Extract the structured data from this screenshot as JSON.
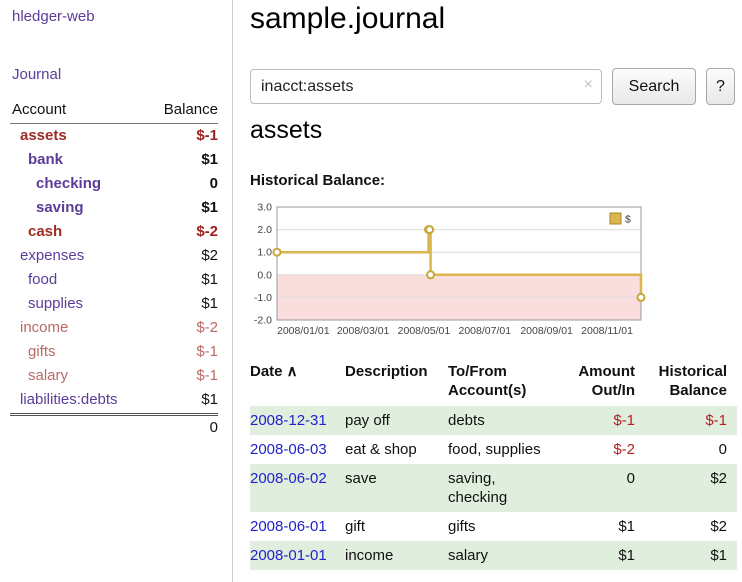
{
  "app": {
    "title": "hledger-web",
    "nav_journal": "Journal"
  },
  "sidebar": {
    "accounts_header": {
      "account": "Account",
      "balance": "Balance"
    },
    "accounts": [
      {
        "name": "assets",
        "balance": "$-1",
        "depth": 1,
        "bold": true,
        "negative": true
      },
      {
        "name": "bank",
        "balance": "$1",
        "depth": 2,
        "bold": true,
        "negative": false
      },
      {
        "name": "checking",
        "balance": "0",
        "depth": 3,
        "bold": true,
        "negative": false
      },
      {
        "name": "saving",
        "balance": "$1",
        "depth": 3,
        "bold": true,
        "negative": false
      },
      {
        "name": "cash",
        "balance": "$-2",
        "depth": 2,
        "bold": true,
        "negative": true
      },
      {
        "name": "expenses",
        "balance": "$2",
        "depth": 1,
        "bold": false,
        "negative": false
      },
      {
        "name": "food",
        "balance": "$1",
        "depth": 2,
        "bold": false,
        "negative": false
      },
      {
        "name": "supplies",
        "balance": "$1",
        "depth": 2,
        "bold": false,
        "negative": false
      },
      {
        "name": "income",
        "balance": "$-2",
        "depth": 1,
        "bold": false,
        "negative": true
      },
      {
        "name": "gifts",
        "balance": "$-1",
        "depth": 2,
        "bold": false,
        "negative": true
      },
      {
        "name": "salary",
        "balance": "$-1",
        "depth": 2,
        "bold": false,
        "negative": true
      },
      {
        "name": "liabilities:debts",
        "balance": "$1",
        "depth": 1,
        "bold": false,
        "negative": false
      }
    ],
    "total": "0"
  },
  "header": {
    "title": "sample.journal"
  },
  "search": {
    "value": "inacct:assets",
    "clear_icon": "×",
    "button": "Search",
    "help_button": "?"
  },
  "main": {
    "account_title": "assets",
    "chart_label": "Historical Balance:",
    "register": {
      "headers": [
        {
          "key": "date",
          "lines": [
            "Date"
          ],
          "sort_icon": "∧",
          "sortable": true
        },
        {
          "key": "description",
          "lines": [
            "Description"
          ],
          "sortable": true
        },
        {
          "key": "accounts",
          "lines": [
            "To/From",
            "Account(s)"
          ],
          "sortable": true
        },
        {
          "key": "amount",
          "lines": [
            "Amount",
            "Out/In"
          ],
          "align": "right",
          "sortable": true
        },
        {
          "key": "balance",
          "lines": [
            "Historical",
            "Balance"
          ],
          "align": "right",
          "sortable": true
        }
      ],
      "rows": [
        {
          "date": "2008-12-31",
          "description": "pay off",
          "accounts": "debts",
          "amount": "$-1",
          "amount_negative": true,
          "balance": "$-1",
          "balance_negative": true
        },
        {
          "date": "2008-06-03",
          "description": "eat & shop",
          "accounts": "food, supplies",
          "amount": "$-2",
          "amount_negative": true,
          "balance": "0",
          "balance_negative": false
        },
        {
          "date": "2008-06-02",
          "description": "save",
          "accounts": "saving, checking",
          "amount": "0",
          "amount_negative": false,
          "balance": "$2",
          "balance_negative": false
        },
        {
          "date": "2008-06-01",
          "description": "gift",
          "accounts": "gifts",
          "amount": "$1",
          "amount_negative": false,
          "balance": "$2",
          "balance_negative": false
        },
        {
          "date": "2008-01-01",
          "description": "income",
          "accounts": "salary",
          "amount": "$1",
          "amount_negative": false,
          "balance": "$1",
          "balance_negative": false
        }
      ]
    }
  },
  "chart_data": {
    "type": "line",
    "title": "Historical Balance",
    "step": true,
    "legend": "$",
    "y_ticks": [
      3,
      2,
      1,
      0,
      -1,
      -2
    ],
    "y_range": [
      -2,
      3
    ],
    "x_range": [
      0,
      365
    ],
    "x_ticks": [
      {
        "label": "2008/01/01",
        "day": 0
      },
      {
        "label": "2008/03/01",
        "day": 60
      },
      {
        "label": "2008/05/01",
        "day": 121
      },
      {
        "label": "2008/07/01",
        "day": 182
      },
      {
        "label": "2008/09/01",
        "day": 244
      },
      {
        "label": "2008/11/01",
        "day": 305
      }
    ],
    "series": [
      {
        "name": "$",
        "points": [
          {
            "date": "2008-01-01",
            "day": 0,
            "value": 1
          },
          {
            "date": "2008-06-01",
            "day": 152,
            "value": 2
          },
          {
            "date": "2008-06-02",
            "day": 153,
            "value": 2
          },
          {
            "date": "2008-06-03",
            "day": 154,
            "value": 0
          },
          {
            "date": "2008-12-31",
            "day": 365,
            "value": -1
          }
        ]
      }
    ],
    "colors": {
      "line": "#d9b64e",
      "marker_stroke": "#c9a437",
      "negative_fill": "#fadddd",
      "grid": "#dcdcdc",
      "plot_border": "#999999"
    }
  }
}
